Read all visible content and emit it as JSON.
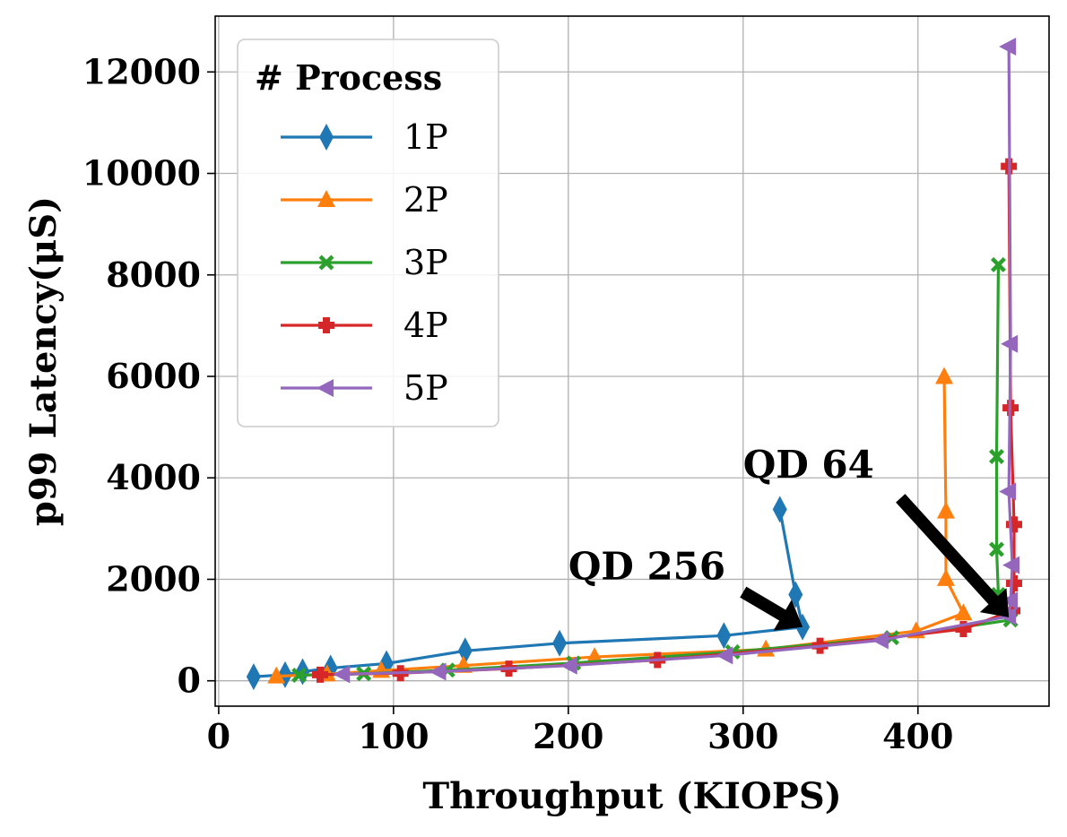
{
  "chart_data": {
    "type": "line",
    "xlabel": "Throughput (KIOPS)",
    "ylabel": "p99 Latency(μS)",
    "xlim": [
      -2,
      475
    ],
    "ylim": [
      -500,
      13100
    ],
    "xticks": [
      0,
      100,
      200,
      300,
      400
    ],
    "yticks": [
      0,
      2000,
      4000,
      6000,
      8000,
      10000,
      12000
    ],
    "grid": true,
    "legend": {
      "title": "# Process",
      "placement": "top-left"
    },
    "series": [
      {
        "name": "1P",
        "color": "#1f77b4",
        "marker": "diamond",
        "points": [
          [
            20,
            80
          ],
          [
            38,
            120
          ],
          [
            48,
            180
          ],
          [
            64,
            250
          ],
          [
            96,
            340
          ],
          [
            141,
            590
          ],
          [
            195,
            740
          ],
          [
            289,
            890
          ],
          [
            334,
            1060
          ],
          [
            330,
            1700
          ],
          [
            321,
            3380
          ]
        ]
      },
      {
        "name": "2P",
        "color": "#ff7f0e",
        "marker": "triangle-up",
        "points": [
          [
            33,
            90
          ],
          [
            62,
            130
          ],
          [
            93,
            200
          ],
          [
            140,
            300
          ],
          [
            215,
            470
          ],
          [
            313,
            620
          ],
          [
            399,
            980
          ],
          [
            426,
            1330
          ],
          [
            416,
            2010
          ],
          [
            416,
            3340
          ],
          [
            415,
            5990
          ]
        ]
      },
      {
        "name": "3P",
        "color": "#2ca02c",
        "marker": "x-filled",
        "points": [
          [
            46,
            110
          ],
          [
            83,
            140
          ],
          [
            131,
            210
          ],
          [
            203,
            350
          ],
          [
            294,
            570
          ],
          [
            385,
            850
          ],
          [
            453,
            1200
          ],
          [
            446,
            1700
          ],
          [
            445,
            2590
          ],
          [
            445,
            4420
          ],
          [
            446,
            8200
          ]
        ]
      },
      {
        "name": "4P",
        "color": "#d62728",
        "marker": "plus-filled",
        "points": [
          [
            58,
            120
          ],
          [
            104,
            150
          ],
          [
            166,
            240
          ],
          [
            251,
            410
          ],
          [
            344,
            690
          ],
          [
            426,
            1020
          ],
          [
            454,
            1380
          ],
          [
            455,
            1920
          ],
          [
            455,
            3080
          ],
          [
            453,
            5380
          ],
          [
            452,
            10140
          ]
        ]
      },
      {
        "name": "5P",
        "color": "#9467bd",
        "marker": "triangle-left",
        "points": [
          [
            71,
            130
          ],
          [
            126,
            180
          ],
          [
            201,
            300
          ],
          [
            290,
            500
          ],
          [
            379,
            800
          ],
          [
            452,
            1270
          ],
          [
            453,
            1580
          ],
          [
            454,
            2280
          ],
          [
            452,
            3730
          ],
          [
            453,
            6640
          ],
          [
            452,
            12500
          ]
        ]
      }
    ],
    "annotations": [
      {
        "text": "QD 256",
        "text_at": [
          200,
          2000
        ],
        "arrow_from": [
          300,
          1750
        ],
        "arrow_to": [
          334,
          1060
        ]
      },
      {
        "text": "QD 64",
        "text_at": [
          300,
          4000
        ],
        "arrow_from": [
          390,
          3600
        ],
        "arrow_to": [
          452,
          1250
        ]
      }
    ]
  }
}
